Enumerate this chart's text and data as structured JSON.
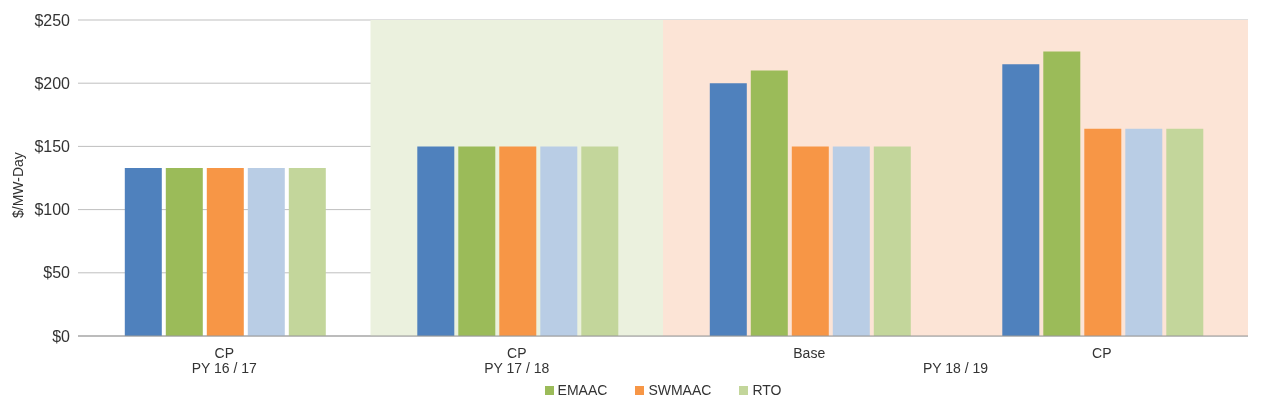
{
  "chart_data": {
    "type": "bar",
    "ylabel": "$/MW-Day",
    "categories": [
      "CP\nPY 16 / 17",
      "CP\nPY 17 / 18",
      "Base",
      "CP"
    ],
    "annotations": [
      "PY 18 / 19"
    ],
    "series": [
      {
        "color": "#4f81bd",
        "values": [
          133,
          150,
          200,
          215
        ]
      },
      {
        "name": "EMAAC",
        "color": "#9bbb59",
        "values": [
          133,
          150,
          210,
          225
        ]
      },
      {
        "name": "SWMAAC",
        "color": "#f79646",
        "values": [
          133,
          150,
          150,
          164
        ]
      },
      {
        "color": "#b9cde5",
        "values": [
          133,
          150,
          150,
          164
        ]
      },
      {
        "name": "RTO",
        "color": "#c3d69b",
        "values": [
          133,
          150,
          150,
          164
        ]
      }
    ],
    "bands": [
      {
        "axis": "x",
        "from": "CP\nPY 17 / 18",
        "to": "CP\nPY 17 / 18",
        "color": "#ebf1de"
      },
      {
        "axis": "x",
        "from": "Base",
        "to": "CP",
        "color": "#fce4d6"
      }
    ],
    "ylim": [
      0,
      250
    ],
    "yticks": [
      {
        "value": 0,
        "label": "$0"
      },
      {
        "value": 50,
        "label": "$50"
      },
      {
        "value": 100,
        "label": "$100"
      },
      {
        "value": 150,
        "label": "$150"
      },
      {
        "value": 200,
        "label": "$200"
      },
      {
        "value": 250,
        "label": "$250"
      }
    ],
    "grid": "y",
    "legend": "bottom"
  }
}
